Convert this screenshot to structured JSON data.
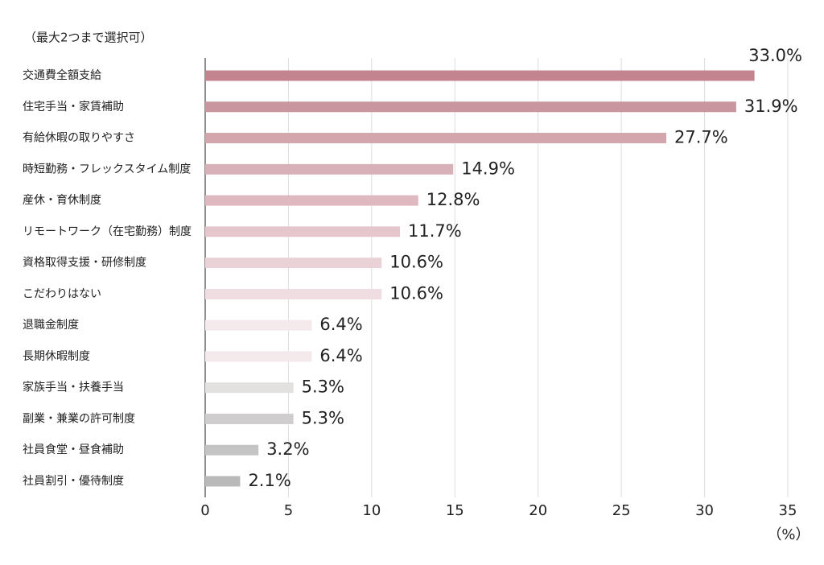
{
  "chart_data": {
    "type": "bar",
    "orientation": "horizontal",
    "subtitle": "（最大2つまで選択可）",
    "x_label": "（%）",
    "categories": [
      "交通費全額支給",
      "住宅手当・家賃補助",
      "有給休暇の取りやすさ",
      "時短勤務・フレックスタイム制度",
      "産休・育休制度",
      "リモートワーク（在宅勤務）制度",
      "資格取得支援・研修制度",
      "こだわりはない",
      "退職金制度",
      "長期休暇制度",
      "家族手当・扶養手当",
      "副業・兼業の許可制度",
      "社員食堂・昼食補助",
      "社員割引・優待制度"
    ],
    "values": [
      33.0,
      31.9,
      27.7,
      14.9,
      12.8,
      11.7,
      10.6,
      10.6,
      6.4,
      6.4,
      5.3,
      5.3,
      3.2,
      2.1
    ],
    "value_labels": [
      "33.0%",
      "31.9%",
      "27.7%",
      "14.9%",
      "12.8%",
      "11.7%",
      "10.6%",
      "10.6%",
      "6.4%",
      "6.4%",
      "5.3%",
      "5.3%",
      "3.2%",
      "2.1%"
    ],
    "colors": [
      "#c3848f",
      "#c9959e",
      "#d3a5ad",
      "#d8b0b8",
      "#deb9c0",
      "#e4c6cc",
      "#ead2d7",
      "#efdde1",
      "#f4e9eb",
      "#f4e9eb",
      "#e3e0e0",
      "#cfcdcd",
      "#c4c4c4",
      "#b9b9b9"
    ],
    "xlim": [
      0,
      35
    ],
    "xticks": [
      0,
      5,
      10,
      15,
      20,
      25,
      30,
      35
    ],
    "grid": true
  }
}
